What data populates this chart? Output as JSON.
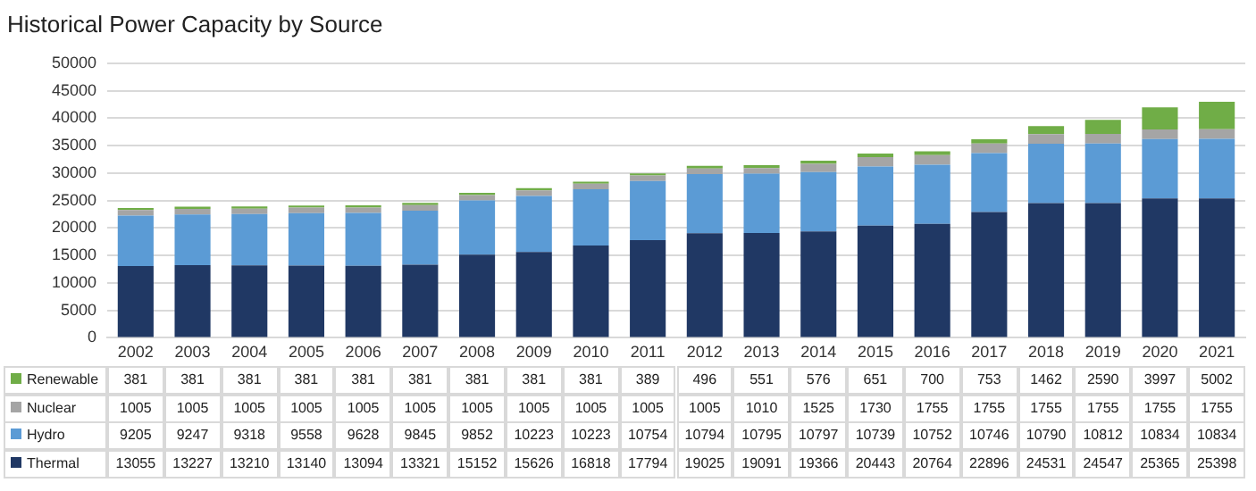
{
  "chart_data": {
    "type": "bar",
    "title": "Historical Power Capacity by Source",
    "stacked": true,
    "categories": [
      "2002",
      "2003",
      "2004",
      "2005",
      "2006",
      "2007",
      "2008",
      "2009",
      "2010",
      "2011",
      "2012",
      "2013",
      "2014",
      "2015",
      "2016",
      "2017",
      "2018",
      "2019",
      "2020",
      "2021"
    ],
    "series": [
      {
        "name": "Thermal",
        "color": "#203864",
        "values": [
          13055,
          13227,
          13210,
          13140,
          13094,
          13321,
          15152,
          15626,
          16818,
          17794,
          19025,
          19091,
          19366,
          20443,
          20764,
          22896,
          24531,
          24547,
          25365,
          25398
        ]
      },
      {
        "name": "Hydro",
        "color": "#5b9bd5",
        "values": [
          9205,
          9247,
          9318,
          9558,
          9628,
          9845,
          9852,
          10223,
          10223,
          10754,
          10794,
          10795,
          10797,
          10739,
          10752,
          10746,
          10790,
          10812,
          10834,
          10834
        ]
      },
      {
        "name": "Nuclear",
        "color": "#a5a5a5",
        "values": [
          1005,
          1005,
          1005,
          1005,
          1005,
          1005,
          1005,
          1005,
          1005,
          1005,
          1005,
          1010,
          1525,
          1730,
          1755,
          1755,
          1755,
          1755,
          1755,
          1755
        ]
      },
      {
        "name": "Renewable",
        "color": "#70ad47",
        "values": [
          381,
          381,
          381,
          381,
          381,
          381,
          381,
          381,
          381,
          389,
          496,
          551,
          576,
          651,
          700,
          753,
          1462,
          2590,
          3997,
          5002
        ]
      }
    ],
    "ylim": [
      0,
      50000
    ],
    "yticks": [
      0,
      5000,
      10000,
      15000,
      20000,
      25000,
      30000,
      35000,
      40000,
      45000,
      50000
    ],
    "grid": "y",
    "legend": "bottom",
    "data_labels": true
  }
}
